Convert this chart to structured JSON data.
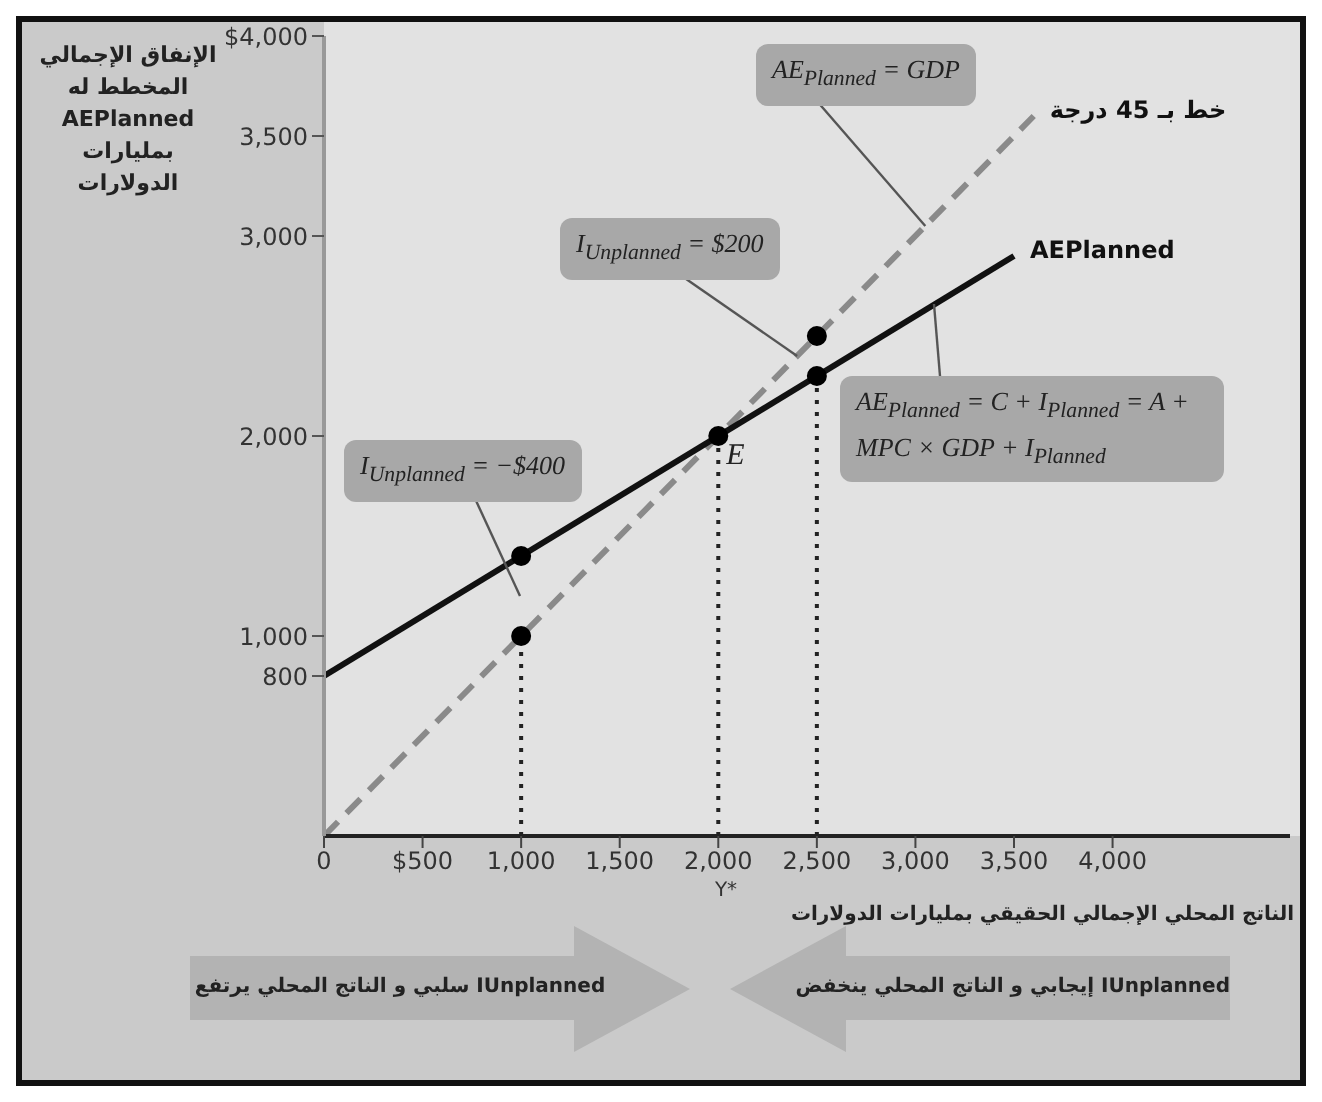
{
  "chart_data": {
    "type": "line",
    "ylabel": "الإنفاق الإجمالي المخطط له AEPlanned بمليارات الدولارات",
    "xlabel": "الناتج المحلي الإجمالي الحقيقي بمليارات الدولارات",
    "xlim": [
      0,
      4900
    ],
    "ylim": [
      0,
      4000
    ],
    "xticks": [
      0,
      {
        "value": 500,
        "label": "$500"
      },
      {
        "value": 1000,
        "label": "1,000"
      },
      {
        "value": 1500,
        "label": "1,500"
      },
      {
        "value": 2000,
        "label": "2,000"
      },
      {
        "value": 2500,
        "label": "2,500"
      },
      {
        "value": 3000,
        "label": "3,000"
      },
      {
        "value": 3500,
        "label": "3,500"
      },
      {
        "value": 4000,
        "label": "4,000"
      }
    ],
    "yticks": [
      {
        "value": 800,
        "label": "800"
      },
      {
        "value": 1000,
        "label": "1,000"
      },
      {
        "value": 2000,
        "label": "2,000"
      },
      {
        "value": 3000,
        "label": "3,000"
      },
      {
        "value": 3500,
        "label": "3,500"
      },
      {
        "value": 4000,
        "label": "$4,000"
      }
    ],
    "series": [
      {
        "name": "خط بـ 45 درجة",
        "color": "#8a8a8a",
        "line_style": "dashed",
        "x": [
          0,
          3600
        ],
        "values": [
          0,
          3600
        ]
      },
      {
        "name": "AEPlanned",
        "color": "#111111",
        "line_style": "solid",
        "x": [
          0,
          3500
        ],
        "values": [
          800,
          2900
        ]
      },
      {
        "color": "#222222",
        "line_style": "dotted",
        "x": [
          1000,
          1000
        ],
        "values": [
          0,
          1000
        ]
      },
      {
        "color": "#222222",
        "line_style": "dotted",
        "x": [
          2000,
          2000
        ],
        "values": [
          0,
          2000
        ]
      },
      {
        "color": "#222222",
        "line_style": "dotted",
        "x": [
          2500,
          2500
        ],
        "values": [
          0,
          2300
        ]
      },
      {
        "type": "scatter",
        "color": "#000000",
        "marker": "circle",
        "x": [
          1000,
          1000,
          2000,
          2500,
          2500
        ],
        "values": [
          1000,
          1400,
          2000,
          2500,
          2300
        ]
      }
    ],
    "annotations": [
      {
        "text": "AE$_{Planned}$ = GDP",
        "x": 3050,
        "y": 3050
      },
      {
        "text": "I$_{Unplanned}$ = $200",
        "x": 2400,
        "y": 2400
      },
      "I$_{Unplanned}$ = −$400",
      "AE$_{Planned}$ = C + I$_{Planned}$ = A + MPC × GDP + I$_{Planned}$",
      {
        "text": "E",
        "x": 2000,
        "y": 2000
      },
      "Y*",
      "IUnplanned سلبي و الناتج المحلي يرتفع",
      "IUnplanned إيجابي و الناتج المحلي ينخفض"
    ]
  }
}
